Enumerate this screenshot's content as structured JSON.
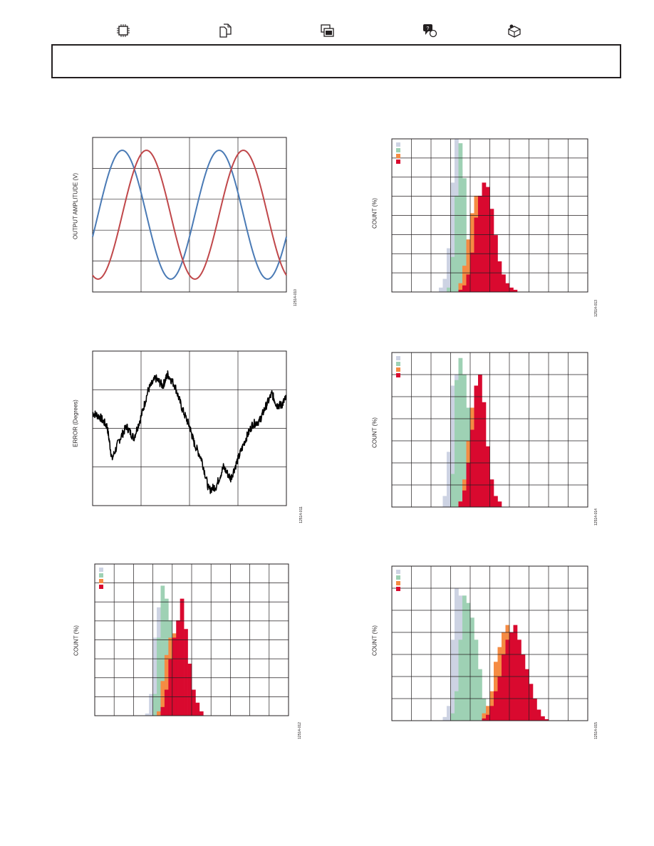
{
  "header": {
    "icons": [
      {
        "name": "chip-icon",
        "x": 0
      },
      {
        "name": "documents-icon"
      },
      {
        "name": "tools-icon"
      },
      {
        "name": "discussion-icon"
      },
      {
        "name": "sample-buy-icon"
      }
    ],
    "border_color": "#231f20"
  },
  "colors": {
    "blue": "#4a7ab5",
    "red": "#c0474a",
    "lightgray": "#cdd3e3",
    "mint": "#9ed1b4",
    "orange": "#f58b43",
    "crimson": "#d9092f",
    "grid": "#231f20"
  },
  "figures": {
    "fig1": {
      "ylabel": "OUTPUT AMPLITUDE (V)",
      "fignum": "12514-010",
      "chart_data": {
        "type": "line",
        "grid": true,
        "xlim": [
          0,
          4
        ],
        "ylim": [
          -1.2,
          1.2
        ],
        "series": [
          {
            "color": "blue",
            "kind": "sine",
            "amplitude": 1,
            "phase": 0
          },
          {
            "color": "red",
            "kind": "sine",
            "amplitude": 1,
            "phase": -0.5
          }
        ]
      }
    },
    "fig2": {
      "ylabel": "ERROR (Degrees)",
      "fignum": "12514-011",
      "chart_data": {
        "type": "line",
        "grid": true,
        "xlim": [
          0,
          4
        ],
        "ylim": [
          -2,
          2
        ],
        "series": [
          {
            "color": "#000000",
            "kind": "noisy",
            "points": [
              [
                0.0,
                0.4
              ],
              [
                0.15,
                0.3
              ],
              [
                0.3,
                0.05
              ],
              [
                0.4,
                -0.8
              ],
              [
                0.55,
                -0.3
              ],
              [
                0.7,
                0.05
              ],
              [
                0.85,
                -0.25
              ],
              [
                1.0,
                0.3
              ],
              [
                1.15,
                1.0
              ],
              [
                1.3,
                1.3
              ],
              [
                1.45,
                1.1
              ],
              [
                1.55,
                1.4
              ],
              [
                1.7,
                1.1
              ],
              [
                1.85,
                0.5
              ],
              [
                2.0,
                0.05
              ],
              [
                2.1,
                -0.4
              ],
              [
                2.25,
                -0.8
              ],
              [
                2.4,
                -1.6
              ],
              [
                2.55,
                -1.5
              ],
              [
                2.7,
                -1.0
              ],
              [
                2.85,
                -1.3
              ],
              [
                3.0,
                -0.8
              ],
              [
                3.15,
                -0.3
              ],
              [
                3.3,
                0.1
              ],
              [
                3.45,
                0.2
              ],
              [
                3.55,
                0.5
              ],
              [
                3.7,
                0.9
              ],
              [
                3.8,
                0.6
              ],
              [
                3.9,
                0.6
              ],
              [
                4.0,
                0.8
              ]
            ]
          }
        ]
      }
    },
    "fig3": {
      "ylabel": "COUNT (%)",
      "fignum": "12514-012",
      "chart_data": {
        "type": "bar",
        "grid": true,
        "xbins": 50,
        "ymax": 35,
        "series": [
          {
            "color": "lightgray",
            "start": 13,
            "values": [
              0.5,
              5,
              18,
              25,
              20
            ]
          },
          {
            "color": "mint",
            "start": 15,
            "values": [
              5,
              18,
              30,
              27,
              22,
              15
            ]
          },
          {
            "color": "orange",
            "start": 16,
            "values": [
              1,
              8,
              14,
              18,
              19,
              15,
              6
            ]
          },
          {
            "color": "crimson",
            "start": 17,
            "values": [
              2,
              6,
              13,
              18,
              22,
              27,
              20,
              12,
              6,
              3,
              1
            ]
          }
        ]
      }
    },
    "fig4": {
      "ylabel": "COUNT (%)",
      "fignum": "12514-013",
      "chart_data": {
        "type": "bar",
        "grid": true,
        "xbins": 50,
        "ymax": 35,
        "series": [
          {
            "color": "lightgray",
            "start": 12,
            "values": [
              1,
              3,
              10,
              25,
              35,
              28,
              7
            ]
          },
          {
            "color": "mint",
            "start": 14,
            "values": [
              1,
              8,
              22,
              34,
              26,
              12,
              3
            ]
          },
          {
            "color": "orange",
            "start": 17,
            "values": [
              2,
              6,
              12,
              18,
              22,
              19,
              14,
              6,
              2
            ]
          },
          {
            "color": "crimson",
            "start": 17,
            "values": [
              0.5,
              1.5,
              4,
              9,
              17,
              22,
              25,
              24,
              19,
              13,
              7,
              4,
              2,
              1,
              0.5
            ]
          }
        ]
      }
    },
    "fig5": {
      "ylabel": "COUNT (%)",
      "fignum": "12514-014",
      "chart_data": {
        "type": "bar",
        "grid": true,
        "xbins": 50,
        "ymax": 28,
        "series": [
          {
            "color": "lightgray",
            "start": 13,
            "values": [
              2,
              10,
              22,
              24,
              19
            ]
          },
          {
            "color": "mint",
            "start": 15,
            "values": [
              6,
              23,
              27,
              24,
              18,
              6
            ]
          },
          {
            "color": "orange",
            "start": 17,
            "values": [
              1,
              5,
              12,
              18,
              21,
              16,
              9,
              4,
              1
            ]
          },
          {
            "color": "crimson",
            "start": 17,
            "values": [
              1,
              3,
              8,
              14,
              22,
              24,
              19,
              11,
              5,
              2,
              1
            ]
          }
        ]
      }
    },
    "fig6": {
      "ylabel": "COUNT (%)",
      "fignum": "12514-015",
      "chart_data": {
        "type": "bar",
        "grid": true,
        "xbins": 50,
        "ymax": 21,
        "series": [
          {
            "color": "lightgray",
            "start": 13,
            "values": [
              0.5,
              2,
              11,
              18,
              17,
              14,
              10,
              5,
              1
            ]
          },
          {
            "color": "mint",
            "start": 15,
            "values": [
              1,
              4,
              11,
              17,
              16,
              14,
              11,
              7,
              3,
              1
            ]
          },
          {
            "color": "orange",
            "start": 23,
            "values": [
              1,
              2,
              4,
              8,
              10,
              12,
              13,
              12,
              10,
              7,
              4,
              2,
              1
            ]
          },
          {
            "color": "crimson",
            "start": 23,
            "values": [
              0.3,
              0.8,
              2,
              4,
              6,
              9,
              11,
              12,
              13,
              11,
              9,
              7,
              5,
              3,
              1.5,
              0.6,
              0.2
            ]
          }
        ]
      }
    }
  }
}
